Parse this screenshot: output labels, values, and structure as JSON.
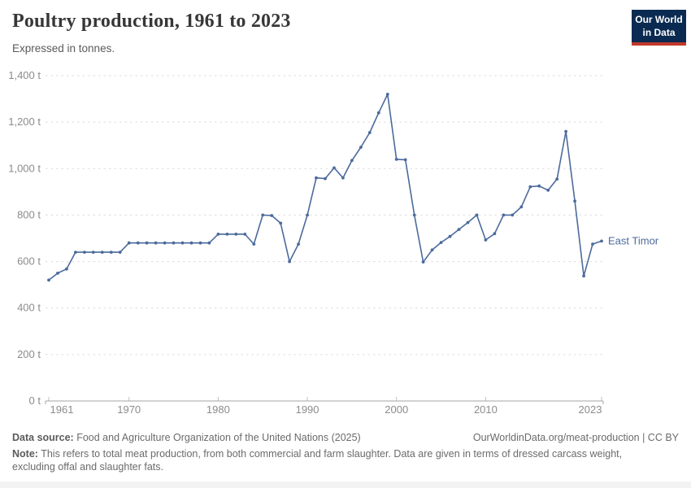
{
  "header": {
    "title": "Poultry production, 1961 to 2023",
    "subtitle": "Expressed in tonnes.",
    "logo": {
      "line1": "Our World",
      "line2": "in Data"
    }
  },
  "chart_data": {
    "type": "line",
    "title": "Poultry production, 1961 to 2023",
    "unit": "tonnes",
    "xlabel": "",
    "ylabel": "",
    "xlim": [
      1961,
      2023
    ],
    "ylim": [
      0,
      1400
    ],
    "grid": "horizontal-dashed",
    "legend_position": "end-of-line-label",
    "x_ticks": [
      1961,
      1970,
      1980,
      1990,
      2000,
      2010,
      2023
    ],
    "y_ticks": [
      0,
      200,
      400,
      600,
      800,
      1000,
      1200,
      1400
    ],
    "y_tick_labels": [
      "0 t",
      "200 t",
      "400 t",
      "600 t",
      "800 t",
      "1,000 t",
      "1,200 t",
      "1,400 t"
    ],
    "series": [
      {
        "name": "East Timor",
        "color": "#4c6a9c",
        "x": [
          1961,
          1962,
          1963,
          1964,
          1965,
          1966,
          1967,
          1968,
          1969,
          1970,
          1971,
          1972,
          1973,
          1974,
          1975,
          1976,
          1977,
          1978,
          1979,
          1980,
          1981,
          1982,
          1983,
          1984,
          1985,
          1986,
          1987,
          1988,
          1989,
          1990,
          1991,
          1992,
          1993,
          1994,
          1995,
          1996,
          1997,
          1998,
          1999,
          2000,
          2001,
          2002,
          2003,
          2004,
          2005,
          2006,
          2007,
          2008,
          2009,
          2010,
          2011,
          2012,
          2013,
          2014,
          2015,
          2016,
          2017,
          2018,
          2019,
          2020,
          2021,
          2022,
          2023
        ],
        "values": [
          520,
          550,
          568,
          640,
          640,
          640,
          640,
          640,
          640,
          680,
          680,
          680,
          680,
          680,
          680,
          680,
          680,
          680,
          680,
          718,
          718,
          718,
          718,
          675,
          800,
          798,
          765,
          600,
          675,
          800,
          960,
          957,
          1003,
          960,
          1035,
          1092,
          1155,
          1240,
          1320,
          1040,
          1038,
          800,
          598,
          650,
          682,
          708,
          738,
          768,
          800,
          693,
          720,
          800,
          800,
          835,
          922,
          925,
          907,
          955,
          1160,
          860,
          538,
          675,
          688
        ]
      }
    ]
  },
  "footer": {
    "datasource_label": "Data source:",
    "datasource_text": " Food and Agriculture Organization of the United Nations (2025)",
    "credit": "OurWorldinData.org/meat-production | CC BY",
    "note_label": "Note:",
    "note_text": " This refers to total meat production, from both commercial and farm slaughter. Data are given in terms of dressed carcass weight, excluding offal and slaughter fats."
  },
  "colors": {
    "line": "#4c6a9c",
    "grid": "#dcdcdc",
    "axis": "#a5a5a5",
    "tick": "#c2c2c2",
    "tick_label": "#8c8c8c",
    "title": "#373737",
    "subtitle": "#5b5b5b",
    "footer": "#6b6b6b",
    "logo_bg": "#0b2a51",
    "logo_bar": "#c0392b"
  }
}
